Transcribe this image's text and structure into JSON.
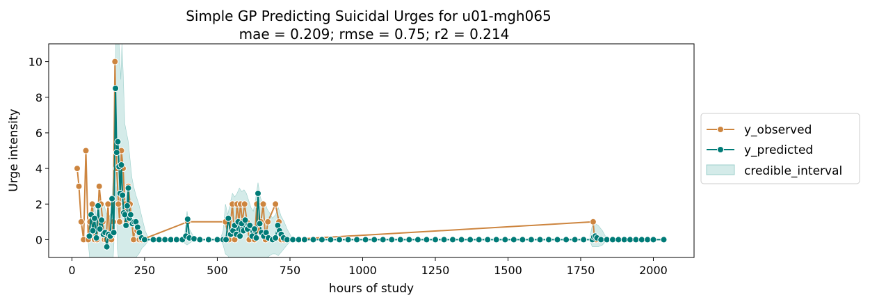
{
  "chart_data": {
    "type": "line",
    "title": "Simple GP Predicting Suicidal Urges for u01-mgh065",
    "subtitle": "mae = 0.209; rmse = 0.75; r2 = 0.214",
    "xlabel": "hours of study",
    "ylabel": "Urge intensity",
    "xlim": [
      -80,
      2140
    ],
    "ylim": [
      -1,
      11
    ],
    "xticks": [
      0,
      250,
      500,
      750,
      1000,
      1250,
      1500,
      1750,
      2000
    ],
    "yticks": [
      0,
      2,
      4,
      6,
      8,
      10
    ],
    "legend": {
      "placement": "right",
      "entries": [
        "y_observed",
        "y_predicted",
        "credible_interval"
      ]
    },
    "colors": {
      "observed": "#cd853f",
      "predicted": "#007b77",
      "interval": "#b7dedb"
    },
    "series": [
      {
        "name": "y_observed",
        "x": [
          18,
          24,
          32,
          40,
          48,
          56,
          62,
          70,
          78,
          86,
          94,
          100,
          106,
          112,
          118,
          124,
          130,
          136,
          142,
          148,
          154,
          160,
          164,
          170,
          176,
          182,
          188,
          194,
          200,
          206,
          212,
          218,
          224,
          232,
          240,
          398,
          528,
          540,
          552,
          560,
          568,
          574,
          580,
          586,
          594,
          602,
          610,
          628,
          636,
          642,
          650,
          658,
          666,
          674,
          700,
          712,
          720,
          730,
          740,
          1793,
          1798,
          1803
        ],
        "y": [
          4,
          3,
          1,
          0,
          5,
          0,
          1,
          2,
          0,
          0,
          3,
          2,
          1,
          0,
          0,
          2,
          0,
          0,
          1,
          10,
          4,
          2,
          1,
          5,
          4,
          2,
          1,
          3,
          2,
          1,
          0,
          1,
          0.5,
          0,
          0,
          1,
          1,
          0,
          2,
          0,
          2,
          1,
          2,
          1,
          2,
          1,
          0,
          0,
          2,
          0.5,
          1,
          2,
          0,
          1,
          2,
          1,
          0,
          0,
          0,
          1,
          0,
          0
        ]
      },
      {
        "name": "y_predicted",
        "x": [
          60,
          66,
          72,
          78,
          84,
          90,
          96,
          102,
          108,
          114,
          120,
          126,
          132,
          138,
          144,
          150,
          154,
          158,
          162,
          166,
          170,
          174,
          178,
          182,
          186,
          190,
          194,
          198,
          202,
          208,
          214,
          220,
          226,
          232,
          240,
          250,
          280,
          300,
          320,
          340,
          360,
          380,
          392,
          398,
          404,
          420,
          440,
          470,
          500,
          520,
          530,
          538,
          546,
          554,
          560,
          566,
          572,
          578,
          584,
          590,
          596,
          604,
          612,
          620,
          628,
          634,
          640,
          646,
          652,
          660,
          668,
          676,
          690,
          700,
          708,
          714,
          720,
          728,
          740,
          760,
          780,
          800,
          830,
          860,
          890,
          920,
          950,
          980,
          1010,
          1040,
          1070,
          1100,
          1130,
          1160,
          1190,
          1220,
          1250,
          1280,
          1310,
          1340,
          1370,
          1400,
          1430,
          1460,
          1490,
          1520,
          1550,
          1580,
          1610,
          1640,
          1670,
          1700,
          1730,
          1760,
          1790,
          1795,
          1800,
          1806,
          1820,
          1840,
          1860,
          1880,
          1900,
          1920,
          1940,
          1960,
          1980,
          2000,
          2036
        ],
        "y": [
          0.2,
          1.4,
          0.5,
          1.2,
          0.1,
          1.9,
          0.6,
          1.1,
          0.3,
          0.4,
          -0.4,
          0.3,
          0.2,
          2.3,
          0.4,
          8.5,
          4.9,
          5.5,
          4.1,
          2.6,
          4.2,
          2.5,
          1.5,
          1.4,
          0.8,
          1.9,
          2.9,
          1.2,
          1.4,
          0.9,
          1.0,
          1.0,
          0.7,
          0.4,
          0.1,
          0,
          0,
          0,
          0,
          0,
          0,
          0,
          0.2,
          1.15,
          0.1,
          0.05,
          0,
          0,
          0,
          0,
          0,
          1.2,
          0.3,
          0.5,
          0.8,
          0.3,
          1.0,
          0.2,
          0.9,
          0.5,
          1.1,
          0.6,
          0.8,
          0.2,
          0.6,
          0.1,
          2.6,
          0.9,
          0.4,
          0.2,
          0.4,
          0.1,
          0,
          0.1,
          0.8,
          0.5,
          0.3,
          0.1,
          0,
          0,
          0,
          0,
          0,
          0,
          0,
          0,
          0,
          0,
          0,
          0,
          0,
          0,
          0,
          0,
          0,
          0,
          0,
          0,
          0,
          0,
          0,
          0,
          0,
          0,
          0,
          0,
          0,
          0,
          0,
          0,
          0,
          0,
          0,
          0,
          0,
          0.15,
          0.2,
          0.1,
          0,
          0,
          0,
          0,
          0,
          0,
          0,
          0,
          0,
          0,
          0
        ]
      }
    ],
    "credible_interval": {
      "x": [
        55,
        62,
        70,
        78,
        86,
        94,
        102,
        110,
        118,
        126,
        134,
        142,
        148,
        152,
        156,
        160,
        164,
        168,
        172,
        176,
        182,
        188,
        194,
        200,
        206,
        212,
        220,
        230,
        240,
        252,
        265,
        380,
        388,
        396,
        404,
        414,
        430,
        510,
        520,
        528,
        536,
        544,
        552,
        560,
        568,
        576,
        584,
        592,
        600,
        608,
        616,
        624,
        632,
        640,
        648,
        656,
        664,
        672,
        680,
        690,
        700,
        710,
        720,
        730,
        740,
        750,
        760,
        1780,
        1790,
        1800,
        1810,
        1825,
        1835,
        1850
      ],
      "upper": [
        0,
        1.5,
        1.4,
        2.0,
        1.0,
        2.3,
        1.8,
        2.0,
        1.5,
        1.2,
        1.5,
        3.5,
        8.0,
        12.5,
        13.0,
        11.5,
        10.5,
        9.0,
        11.0,
        9.5,
        6.5,
        6.0,
        5.5,
        4.5,
        3.5,
        3.0,
        2.5,
        2.0,
        1.3,
        0.5,
        0,
        0,
        0.3,
        1.6,
        0.6,
        0.3,
        0,
        0,
        0.5,
        2.0,
        1.4,
        2.0,
        2.6,
        2.4,
        2.6,
        2.9,
        2.7,
        2.8,
        2.6,
        2.2,
        1.8,
        1.6,
        2.3,
        3.2,
        2.4,
        2.0,
        2.1,
        1.7,
        1.5,
        1.2,
        1.4,
        1.8,
        1.3,
        1.0,
        0.6,
        0.3,
        0,
        0,
        0.8,
        0.9,
        0.8,
        0.5,
        0.2,
        0
      ],
      "lower": [
        0,
        -1.2,
        -1.5,
        -1.2,
        -1.5,
        -1.1,
        -1.5,
        -1.3,
        -1.6,
        -1.5,
        -1.4,
        -1.0,
        1.0,
        3.0,
        -0.5,
        -1.0,
        -1.2,
        -1.5,
        -1.2,
        -1.5,
        -1.2,
        -1.0,
        -1.2,
        -1.0,
        -1.1,
        -1.2,
        -1.0,
        -0.8,
        -0.5,
        -0.3,
        0,
        0,
        -0.2,
        -0.3,
        -0.2,
        -0.1,
        0,
        0,
        -0.3,
        -0.8,
        -0.9,
        -1.1,
        -1.3,
        -1.2,
        -1.3,
        -1.4,
        -1.2,
        -1.3,
        -1.2,
        -1.1,
        -1.0,
        -1.0,
        -1.3,
        -1.5,
        -1.3,
        -1.2,
        -1.1,
        -1.0,
        -0.9,
        -0.8,
        -0.8,
        -0.9,
        -0.7,
        -0.5,
        -0.3,
        -0.1,
        0,
        0,
        -0.4,
        -0.4,
        -0.4,
        -0.3,
        -0.1,
        0
      ]
    }
  }
}
